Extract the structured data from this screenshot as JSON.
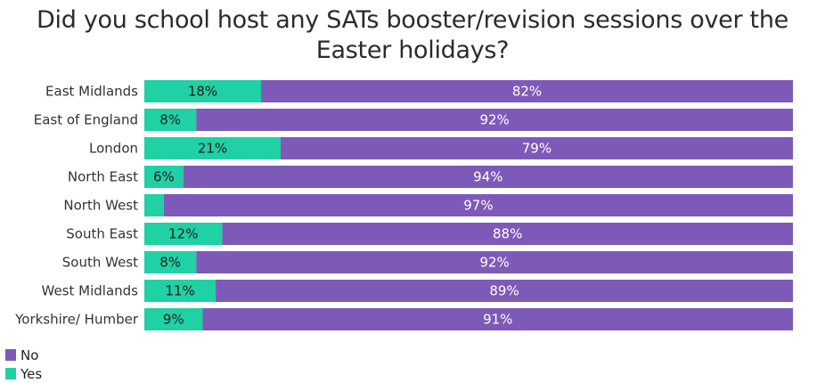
{
  "chart_data": {
    "type": "bar",
    "orientation": "horizontal",
    "stacked": true,
    "title": "Did you school host any SATs booster/revision sessions over the Easter holidays?",
    "title_lines": [
      "Did you school host any SATs booster/revision sessions over the",
      "Easter holidays?"
    ],
    "categories": [
      "East Midlands",
      "East of England",
      "London",
      "North East",
      "North West",
      "South East",
      "South West",
      "West Midlands",
      "Yorkshire/ Humber"
    ],
    "series": [
      {
        "name": "Yes",
        "color": "#1fd1a4",
        "values": [
          18,
          8,
          21,
          6,
          3,
          12,
          8,
          11,
          9
        ],
        "labels": [
          "18%",
          "8%",
          "21%",
          "6%",
          "",
          "12%",
          "8%",
          "11%",
          "9%"
        ]
      },
      {
        "name": "No",
        "color": "#7e5ab8",
        "values": [
          82,
          92,
          79,
          94,
          97,
          88,
          92,
          89,
          91
        ],
        "labels": [
          "82%",
          "92%",
          "79%",
          "94%",
          "97%",
          "88%",
          "92%",
          "89%",
          "91%"
        ]
      }
    ],
    "xlim": [
      0,
      100
    ],
    "legend_position": "bottom-left",
    "legend": [
      {
        "name": "No",
        "color": "#7e5ab8"
      },
      {
        "name": "Yes",
        "color": "#1fd1a4"
      }
    ],
    "grid": false
  }
}
